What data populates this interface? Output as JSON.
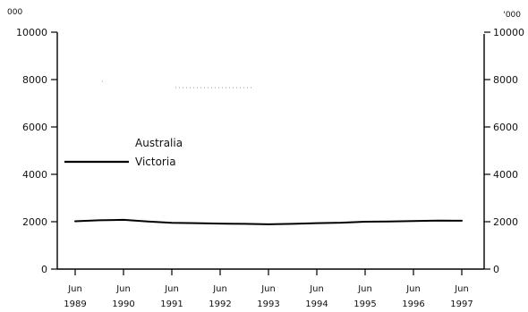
{
  "chart_data": {
    "type": "line",
    "title": "",
    "y_unit_left": "000",
    "y_unit_right": "'000",
    "ylim": [
      0,
      10000
    ],
    "y_ticks_left": [
      "0",
      "2000",
      "4000",
      "6000",
      "8000",
      "10000"
    ],
    "y_ticks_right": [
      "0",
      "2000",
      "4000",
      "6000",
      "8000",
      "10000"
    ],
    "y_tick_values": [
      0,
      2000,
      4000,
      6000,
      8000,
      10000
    ],
    "x_ticks": [
      {
        "month": "Jun",
        "year": "1989"
      },
      {
        "month": "Jun",
        "year": "1990"
      },
      {
        "month": "Jun",
        "year": "1991"
      },
      {
        "month": "Jun",
        "year": "1992"
      },
      {
        "month": "Jun",
        "year": "1993"
      },
      {
        "month": "Jun",
        "year": "1994"
      },
      {
        "month": "Jun",
        "year": "1995"
      },
      {
        "month": "Jun",
        "year": "1996"
      },
      {
        "month": "Jun",
        "year": "1997"
      }
    ],
    "grid": false,
    "legend_placement": "left",
    "series": [
      {
        "name": "Australia",
        "color": "#bbbbbb",
        "x": [
          "Jun 1989",
          "Dec 1989",
          "Jun 1990",
          "Dec 1990",
          "Jun 1991",
          "Dec 1991",
          "Jun 1992",
          "Dec 1992",
          "Jun 1993",
          "Dec 1993",
          "Jun 1994",
          "Dec 1994",
          "Jun 1995",
          "Dec 1995",
          "Jun 1996",
          "Dec 1996",
          "Jun 1997"
        ],
        "values": [
          null,
          null,
          null,
          null,
          null,
          null,
          null,
          null,
          null,
          null,
          null,
          null,
          null,
          null,
          null,
          null,
          null
        ]
      },
      {
        "name": "Victoria",
        "color": "#000000",
        "x": [
          "Jun 1989",
          "Dec 1989",
          "Jun 1990",
          "Dec 1990",
          "Jun 1991",
          "Dec 1991",
          "Jun 1992",
          "Dec 1992",
          "Jun 1993",
          "Dec 1993",
          "Jun 1994",
          "Dec 1994",
          "Jun 1995",
          "Dec 1995",
          "Jun 1996",
          "Dec 1996",
          "Jun 1997"
        ],
        "values": [
          2020,
          2060,
          2080,
          2010,
          1950,
          1940,
          1920,
          1910,
          1890,
          1910,
          1940,
          1960,
          2000,
          2010,
          2030,
          2050,
          2040
        ]
      }
    ]
  }
}
